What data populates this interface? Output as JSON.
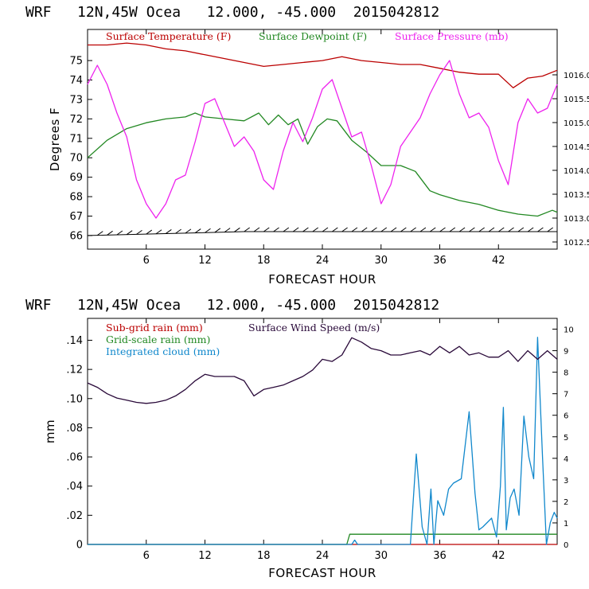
{
  "chart_data": [
    {
      "type": "line",
      "header": "WRF   12N,45W Ocea   12.000, -45.000  2015042812",
      "xlabel": "FORECAST HOUR",
      "ylabel": "Degrees F",
      "xlim": [
        0,
        48
      ],
      "ylim": [
        65.3,
        76.6
      ],
      "y2lim": [
        1012.35,
        1016.95
      ],
      "xticks": [
        6,
        12,
        18,
        24,
        30,
        36,
        42
      ],
      "xtick_labels": [
        "6",
        "12",
        "18",
        "24",
        "30",
        "36",
        "42"
      ],
      "yticks": [
        66,
        67,
        68,
        69,
        70,
        71,
        72,
        73,
        74,
        75
      ],
      "ytick_labels": [
        "66",
        "67",
        "68",
        "69",
        "70",
        "71",
        "72",
        "73",
        "74",
        "75"
      ],
      "y2ticks": [
        1012.5,
        1013.0,
        1013.5,
        1014.0,
        1014.5,
        1015.0,
        1015.5,
        1016.0
      ],
      "y2tick_labels": [
        "1012.5",
        "1013.0",
        "1013.5",
        "1014.0",
        "1014.5",
        "1015.0",
        "1015.5",
        "1016.0"
      ],
      "series": [
        {
          "name": "Surface Temperature (F)",
          "color": "#bb0000",
          "axis": "left",
          "x": [
            0,
            2,
            4,
            6,
            8,
            10,
            12,
            14,
            16,
            18,
            20,
            22,
            24,
            26,
            28,
            30,
            32,
            34,
            36,
            38,
            40,
            42,
            43.5,
            45,
            46.5,
            48
          ],
          "values": [
            75.8,
            75.8,
            75.9,
            75.8,
            75.6,
            75.5,
            75.3,
            75.1,
            74.9,
            74.7,
            74.8,
            74.9,
            75.0,
            75.2,
            75.0,
            74.9,
            74.8,
            74.8,
            74.6,
            74.4,
            74.3,
            74.3,
            73.6,
            74.1,
            74.2,
            74.5
          ]
        },
        {
          "name": "Surface Dewpoint (F)",
          "color": "#228822",
          "axis": "left",
          "x": [
            0,
            2,
            4,
            6,
            8,
            10,
            11,
            12,
            14,
            16,
            17.5,
            18.5,
            19.5,
            20.5,
            21.5,
            22.5,
            23.5,
            24.5,
            25.5,
            27,
            28.5,
            30,
            32,
            33.5,
            35,
            36,
            38,
            40,
            42,
            44,
            46,
            47.5,
            48
          ],
          "values": [
            70.0,
            70.9,
            71.5,
            71.8,
            72.0,
            72.1,
            72.3,
            72.1,
            72.0,
            71.9,
            72.3,
            71.7,
            72.2,
            71.7,
            72.0,
            70.7,
            71.6,
            72.0,
            71.9,
            70.9,
            70.3,
            69.6,
            69.6,
            69.3,
            68.3,
            68.1,
            67.8,
            67.6,
            67.3,
            67.1,
            67.0,
            67.3,
            67.2
          ]
        },
        {
          "name": "Surface Pressure (mb)",
          "color": "#ee22ee",
          "axis": "right",
          "x": [
            0,
            1,
            2,
            3,
            4,
            5,
            6,
            7,
            8,
            9,
            10,
            11,
            12,
            13,
            14,
            15,
            16,
            17,
            18,
            19,
            20,
            21,
            22,
            23,
            24,
            25,
            26,
            27,
            28,
            29,
            30,
            31,
            32,
            33,
            34,
            35,
            36,
            37,
            38,
            39,
            40,
            41,
            42,
            43,
            44,
            45,
            46,
            47,
            48
          ],
          "values": [
            1015.8,
            1016.2,
            1015.8,
            1015.2,
            1014.7,
            1013.8,
            1013.3,
            1013.0,
            1013.3,
            1013.8,
            1013.9,
            1014.6,
            1015.4,
            1015.5,
            1015.0,
            1014.5,
            1014.7,
            1014.4,
            1013.8,
            1013.6,
            1014.4,
            1015.0,
            1014.6,
            1015.1,
            1015.7,
            1015.9,
            1015.3,
            1014.7,
            1014.8,
            1014.1,
            1013.3,
            1013.7,
            1014.5,
            1014.8,
            1015.1,
            1015.6,
            1016.0,
            1016.3,
            1015.6,
            1015.1,
            1015.2,
            1014.9,
            1014.2,
            1013.7,
            1015.0,
            1015.5,
            1015.2,
            1015.3,
            1015.8
          ]
        },
        {
          "name": "Surface Wind barbs",
          "color": "#000000",
          "axis": "left",
          "x": [
            0,
            8,
            16,
            24,
            32,
            40,
            48
          ],
          "values": [
            66.0,
            66.1,
            66.2,
            66.2,
            66.2,
            66.2,
            66.2
          ]
        }
      ]
    },
    {
      "type": "line",
      "header": "WRF   12N,45W Ocea   12.000, -45.000  2015042812",
      "xlabel": "FORECAST HOUR",
      "ylabel": "mm",
      "xlim": [
        0,
        48
      ],
      "ylim": [
        0,
        0.155
      ],
      "y2lim": [
        0,
        10.5
      ],
      "xticks": [
        6,
        12,
        18,
        24,
        30,
        36,
        42
      ],
      "xtick_labels": [
        "6",
        "12",
        "18",
        "24",
        "30",
        "36",
        "42"
      ],
      "yticks": [
        0,
        0.02,
        0.04,
        0.06,
        0.08,
        0.1,
        0.12,
        0.14
      ],
      "ytick_labels": [
        "0",
        ".02",
        ".04",
        ".06",
        ".08",
        ".10",
        ".12",
        ".14"
      ],
      "y2ticks": [
        0,
        1,
        2,
        3,
        4,
        5,
        6,
        7,
        8,
        9,
        10
      ],
      "y2tick_labels": [
        "0",
        "1",
        "2",
        "3",
        "4",
        "5",
        "6",
        "7",
        "8",
        "9",
        "10"
      ],
      "series": [
        {
          "name": "Sub-grid rain (mm)",
          "color": "#bb0000",
          "axis": "left",
          "x": [
            0,
            48
          ],
          "values": [
            0,
            0
          ]
        },
        {
          "name": "Grid-scale rain (mm)",
          "color": "#228822",
          "axis": "left",
          "x": [
            0,
            26.5,
            26.8,
            48
          ],
          "values": [
            0,
            0,
            0.007,
            0.007
          ]
        },
        {
          "name": "Integrated cloud (mm)",
          "color": "#1188cc",
          "axis": "left",
          "x": [
            0,
            27,
            27.3,
            27.6,
            33,
            33.6,
            34.2,
            34.7,
            35.1,
            35.4,
            35.8,
            36.4,
            36.9,
            37.4,
            38.2,
            39,
            39.6,
            40,
            40.4,
            41.3,
            41.8,
            42.2,
            42.5,
            42.8,
            43.2,
            43.6,
            44.1,
            44.6,
            45.1,
            45.6,
            46,
            46.5,
            46.9,
            47.3,
            47.7,
            48
          ],
          "values": [
            0,
            0,
            0.003,
            0,
            0,
            0.062,
            0.012,
            0.0,
            0.038,
            0.0,
            0.03,
            0.02,
            0.038,
            0.042,
            0.045,
            0.091,
            0.035,
            0.01,
            0.012,
            0.018,
            0.005,
            0.04,
            0.094,
            0.01,
            0.032,
            0.038,
            0.02,
            0.088,
            0.06,
            0.045,
            0.142,
            0.06,
            0.0,
            0.015,
            0.022,
            0.018
          ]
        },
        {
          "name": "Surface Wind Speed (m/s)",
          "color": "#2a0a3a",
          "axis": "right",
          "x": [
            0,
            1,
            2,
            3,
            4,
            5,
            6,
            7,
            8,
            9,
            10,
            11,
            12,
            13,
            14,
            15,
            16,
            17,
            18,
            19,
            20,
            21,
            22,
            23,
            24,
            25,
            26,
            27,
            28,
            29,
            30,
            31,
            32,
            33,
            34,
            35,
            36,
            37,
            38,
            39,
            40,
            41,
            42,
            43,
            44,
            45,
            46,
            47,
            48
          ],
          "values": [
            7.5,
            7.3,
            7.0,
            6.8,
            6.7,
            6.6,
            6.55,
            6.6,
            6.7,
            6.9,
            7.2,
            7.6,
            7.9,
            7.8,
            7.8,
            7.8,
            7.6,
            6.9,
            7.2,
            7.3,
            7.4,
            7.6,
            7.8,
            8.1,
            8.6,
            8.5,
            8.8,
            9.6,
            9.4,
            9.1,
            9.0,
            8.8,
            8.8,
            8.9,
            9.0,
            8.8,
            9.2,
            8.9,
            9.2,
            8.8,
            8.9,
            8.7,
            8.7,
            9.0,
            8.5,
            9.0,
            8.6,
            9.0,
            8.6
          ]
        }
      ]
    }
  ]
}
